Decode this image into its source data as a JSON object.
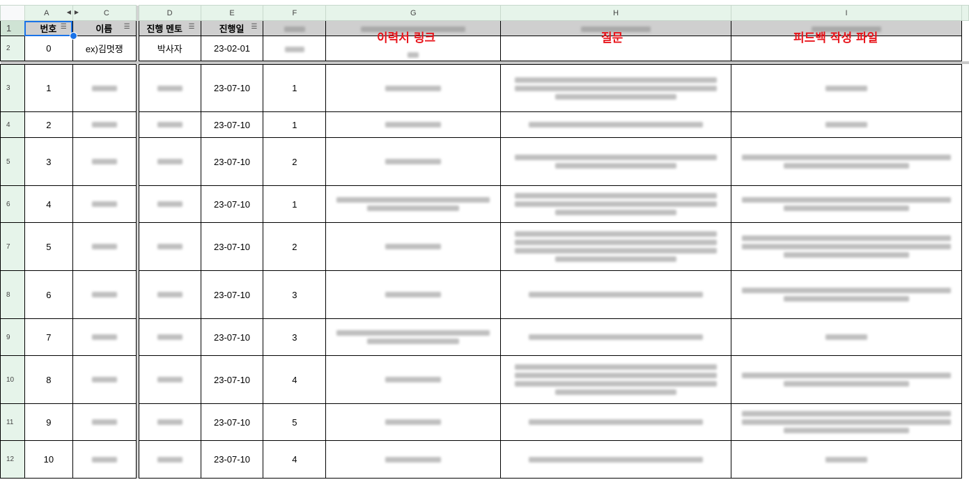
{
  "columns": [
    "A",
    "C",
    "D",
    "E",
    "F",
    "G",
    "H",
    "I"
  ],
  "header_row": {
    "row_num": "1",
    "cells": [
      "번호",
      "이름",
      "진행 멘토",
      "진행일"
    ]
  },
  "example_row": {
    "row_num": "2",
    "no": "0",
    "name": "ex)김멋쟁",
    "mentor": "박사자",
    "date": "23-02-01"
  },
  "rows": [
    {
      "row_num": "3",
      "no": "1",
      "date": "23-07-10",
      "f": "1"
    },
    {
      "row_num": "4",
      "no": "2",
      "date": "23-07-10",
      "f": "1"
    },
    {
      "row_num": "5",
      "no": "3",
      "date": "23-07-10",
      "f": "2"
    },
    {
      "row_num": "6",
      "no": "4",
      "date": "23-07-10",
      "f": "1"
    },
    {
      "row_num": "7",
      "no": "5",
      "date": "23-07-10",
      "f": "2"
    },
    {
      "row_num": "8",
      "no": "6",
      "date": "23-07-10",
      "f": "3"
    },
    {
      "row_num": "9",
      "no": "7",
      "date": "23-07-10",
      "f": "3"
    },
    {
      "row_num": "10",
      "no": "8",
      "date": "23-07-10",
      "f": "4"
    },
    {
      "row_num": "11",
      "no": "9",
      "date": "23-07-10",
      "f": "5"
    },
    {
      "row_num": "12",
      "no": "10",
      "date": "23-07-10",
      "f": "4"
    }
  ],
  "annotations": {
    "resume_link": "이력서 링크",
    "question": "질문",
    "feedback_file": "피드백 작성 파일"
  },
  "icons": {
    "filter": "filter-icon",
    "hide_left": "arrow-left-icon",
    "hide_right": "arrow-right-icon"
  },
  "colors": {
    "header_green": "#e6f4ea",
    "annotation_red": "#e8141b",
    "selection_blue": "#1a73e8"
  }
}
